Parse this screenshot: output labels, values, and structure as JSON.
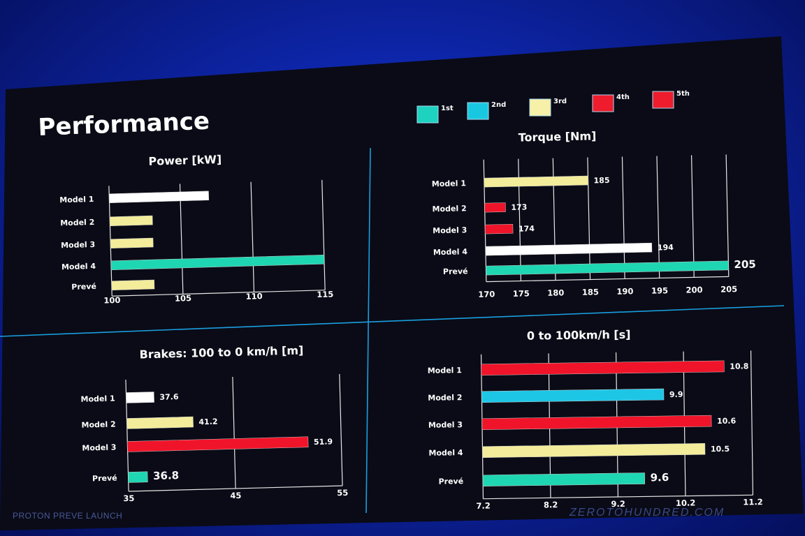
{
  "slide": {
    "title": "Performance",
    "watermark_left": "PROTON PREVE LAUNCH",
    "watermark_right": "ZEROTOHUNDRED.COM"
  },
  "legend": [
    {
      "label": "1st",
      "color": "#1dd3c0"
    },
    {
      "label": "2nd",
      "color": "#19c8e0"
    },
    {
      "label": "3rd",
      "color": "#f6f0a8"
    },
    {
      "label": "4th",
      "color": "#ee1c2c"
    },
    {
      "label": "5th",
      "color": "#ee1c2c"
    }
  ],
  "colors": {
    "white": "#ffffff",
    "yellow": "#f3ec9a",
    "teal": "#1fd6b2",
    "cyan": "#1ec6e6",
    "red": "#f0142a",
    "background": "#0a0b16",
    "divider": "#1a9fe0"
  },
  "chart_data": [
    {
      "type": "bar",
      "title": "Power [kW]",
      "categories": [
        "Model 1",
        "Model 2",
        "Model 3",
        "Model 4",
        "Prevé"
      ],
      "values": [
        107,
        103,
        103,
        115,
        103
      ],
      "bar_colors": [
        "white",
        "yellow",
        "yellow",
        "teal",
        "yellow"
      ],
      "value_labels": [
        "",
        "",
        "",
        "",
        ""
      ],
      "xlim": [
        100,
        115
      ],
      "ticks": [
        "100",
        "105",
        "110",
        "115"
      ],
      "grid": true
    },
    {
      "type": "bar",
      "title": "Torque [Nm]",
      "categories": [
        "Model 1",
        "Model 2",
        "Model 3",
        "Model 4",
        "Prevé"
      ],
      "values": [
        185,
        173,
        174,
        194,
        205
      ],
      "bar_colors": [
        "yellow",
        "red",
        "red",
        "white",
        "teal"
      ],
      "value_labels": [
        "185",
        "173",
        "174",
        "194",
        "205"
      ],
      "xlim": [
        170,
        205
      ],
      "ticks": [
        "170",
        "175",
        "180",
        "185",
        "190",
        "195",
        "200",
        "205"
      ],
      "grid": true
    },
    {
      "type": "bar",
      "title": "Brakes:  100 to 0 km/h [m]",
      "categories": [
        "Model 1",
        "Model 2",
        "Model 3",
        "Prevé"
      ],
      "values": [
        37.6,
        41.2,
        51.9,
        36.8
      ],
      "bar_colors": [
        "white",
        "yellow",
        "red",
        "teal"
      ],
      "value_labels": [
        "37.6",
        "41.2",
        "51.9",
        "36.8"
      ],
      "xlim": [
        35,
        55
      ],
      "ticks": [
        "35",
        "45",
        "55"
      ],
      "grid": true
    },
    {
      "type": "bar",
      "title": "0 to 100km/h [s]",
      "categories": [
        "Model 1",
        "Model 2",
        "Model 3",
        "Model 4",
        "Prevé"
      ],
      "values": [
        10.8,
        9.9,
        10.6,
        10.5,
        9.6
      ],
      "bar_colors": [
        "red",
        "cyan",
        "red",
        "yellow",
        "teal"
      ],
      "value_labels": [
        "10.8",
        "9.9",
        "10.6",
        "10.5",
        "9.6"
      ],
      "xlim": [
        7.2,
        11.2
      ],
      "ticks": [
        "7.2",
        "8.2",
        "9.2",
        "10.2",
        "11.2"
      ],
      "grid": true
    }
  ]
}
